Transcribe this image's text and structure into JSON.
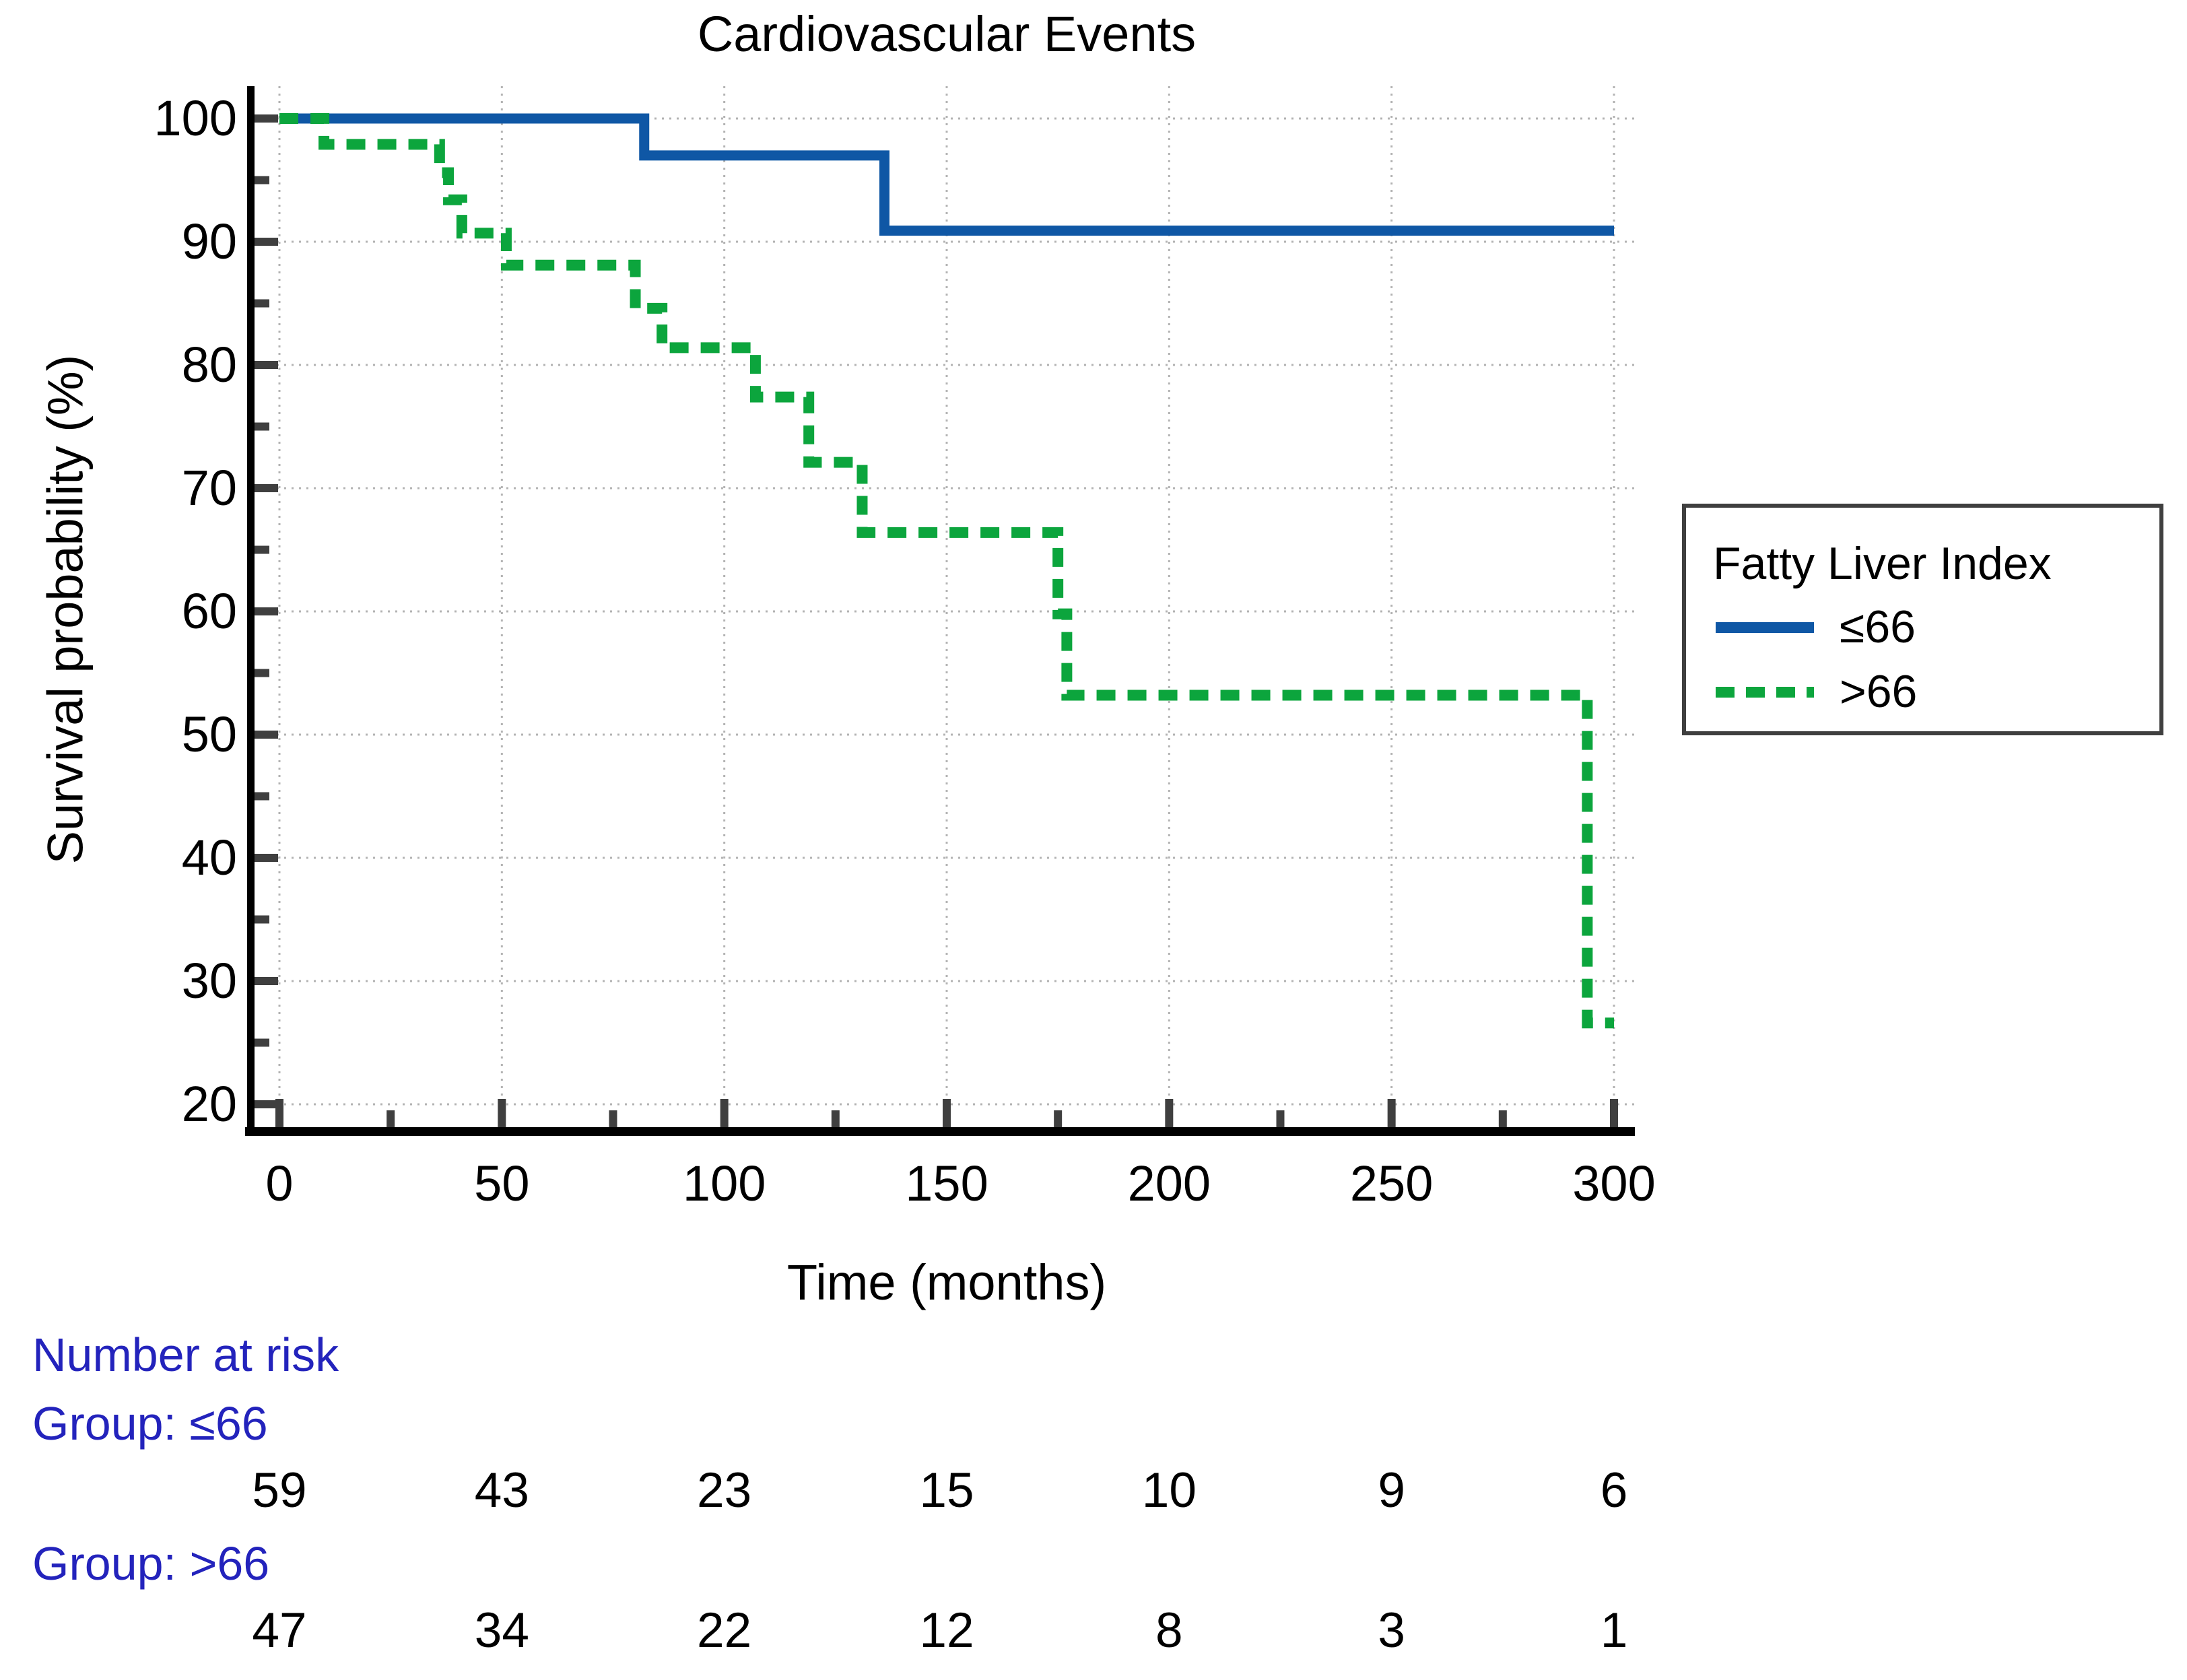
{
  "title": "Cardiovascular Events",
  "axes": {
    "x_label": "Time (months)",
    "y_label": "Survival probability (%)",
    "x_major_ticks": [
      0,
      50,
      100,
      150,
      200,
      250,
      300
    ],
    "x_minor_ticks": [
      25,
      75,
      125,
      175,
      225,
      275
    ],
    "y_major_ticks": [
      100,
      90,
      80,
      70,
      60,
      50,
      40,
      30,
      20
    ],
    "y_minor_ticks": [
      95,
      85,
      75,
      65,
      55,
      45,
      35,
      25
    ],
    "x_range": [
      0,
      300
    ],
    "y_range": [
      20,
      100
    ]
  },
  "legend": {
    "title": "Fatty Liver Index",
    "items": [
      {
        "label": "≤66",
        "color": "#0F57A5",
        "style": "solid"
      },
      {
        "label": ">66",
        "color": "#0CA53D",
        "style": "dashed"
      }
    ]
  },
  "chart_data": {
    "type": "line",
    "subtype": "kaplan-meier-step",
    "title": "Cardiovascular Events",
    "xlabel": "Time (months)",
    "ylabel": "Survival probability (%)",
    "xlim": [
      0,
      300
    ],
    "ylim": [
      20,
      100
    ],
    "grid": "dotted both axes at major ticks",
    "legend_position": "right, outside plot",
    "series": [
      {
        "name": "≤66",
        "color": "#0F57A5",
        "line_style": "solid",
        "step_points": [
          [
            0,
            100
          ],
          [
            82,
            100
          ],
          [
            82,
            97
          ],
          [
            136,
            97
          ],
          [
            136,
            90.9
          ],
          [
            300,
            90.9
          ]
        ]
      },
      {
        "name": ">66",
        "color": "#0CA53D",
        "line_style": "dashed",
        "step_points": [
          [
            0,
            100
          ],
          [
            10,
            100
          ],
          [
            10,
            97.9
          ],
          [
            36,
            97.9
          ],
          [
            36,
            95.6
          ],
          [
            38,
            95.6
          ],
          [
            38,
            93.4
          ],
          [
            41,
            93.4
          ],
          [
            41,
            90.7
          ],
          [
            51,
            90.7
          ],
          [
            51,
            88.1
          ],
          [
            80,
            88.1
          ],
          [
            80,
            84.6
          ],
          [
            86,
            84.6
          ],
          [
            86,
            81.4
          ],
          [
            107,
            81.4
          ],
          [
            107,
            77.4
          ],
          [
            119,
            77.4
          ],
          [
            119,
            72.1
          ],
          [
            131,
            72.1
          ],
          [
            131,
            66.4
          ],
          [
            175,
            66.4
          ],
          [
            175,
            59.8
          ],
          [
            177,
            59.8
          ],
          [
            177,
            53.2
          ],
          [
            294,
            53.2
          ],
          [
            294,
            26.6
          ],
          [
            300,
            26.6
          ]
        ]
      }
    ]
  },
  "risk_table": {
    "header": "Number at risk",
    "times": [
      0,
      50,
      100,
      150,
      200,
      250,
      300
    ],
    "groups": [
      {
        "label": "Group: ≤66",
        "counts": [
          "59",
          "43",
          "23",
          "15",
          "10",
          "9",
          "6"
        ]
      },
      {
        "label": "Group: >66",
        "counts": [
          "47",
          "34",
          "22",
          "12",
          "8",
          "3",
          "1"
        ]
      }
    ]
  },
  "colors": {
    "curve_blue": "#0F57A5",
    "curve_green": "#0CA53D",
    "risk_label_blue": "#2323BC",
    "axis_black": "#000000",
    "tick_gray": "#3F3F3F",
    "grid_gray": "#B3B3B3",
    "legend_border": "#3F3F3F"
  }
}
